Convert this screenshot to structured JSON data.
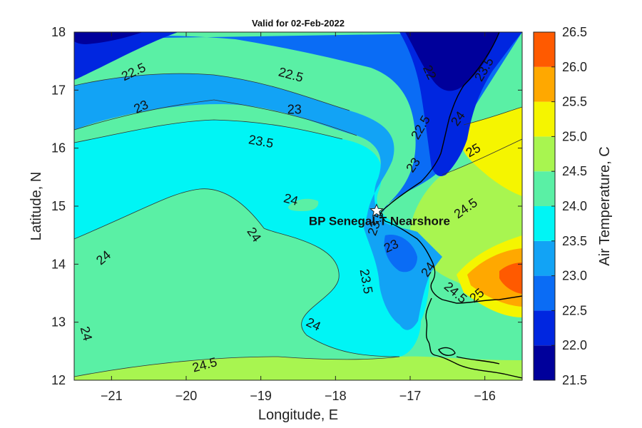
{
  "title": "Valid for 02-Feb-2022",
  "x_axis": {
    "label": "Longitude, E",
    "range": [
      -21.5,
      -15.5
    ],
    "ticks": [
      -21,
      -20,
      -19,
      -18,
      -17,
      -16
    ],
    "tick_labels": [
      "−21",
      "−20",
      "−19",
      "−18",
      "−17",
      "−16"
    ]
  },
  "y_axis": {
    "label": "Latitude, N",
    "range": [
      12,
      18
    ],
    "ticks": [
      12,
      13,
      14,
      15,
      16,
      17,
      18
    ],
    "tick_labels": [
      "12",
      "13",
      "14",
      "15",
      "16",
      "17",
      "18"
    ]
  },
  "colorbar": {
    "label": "Air Temperature, C",
    "levels": [
      21.5,
      22.0,
      22.5,
      23.0,
      23.5,
      24.0,
      24.5,
      25.0,
      25.5,
      26.0,
      26.5
    ],
    "tick_labels": [
      "21.5",
      "22.0",
      "22.5",
      "23.0",
      "23.5",
      "24.0",
      "24.5",
      "25.0",
      "25.5",
      "26.0",
      "26.5"
    ],
    "colors": [
      "#00009b",
      "#0026e0",
      "#0a6cf5",
      "#12a3f5",
      "#00f5f5",
      "#5af0a5",
      "#a8f550",
      "#f5f500",
      "#ffa800",
      "#ff5a00"
    ]
  },
  "chart_data": {
    "type": "heatmap",
    "variable": "Air Temperature",
    "units": "C",
    "contour_labels": [
      {
        "text": "22.5",
        "lon": -20.7,
        "lat": 17.3,
        "angle": -25
      },
      {
        "text": "22.5",
        "lon": -18.6,
        "lat": 17.25,
        "angle": 15
      },
      {
        "text": "22",
        "lon": -16.75,
        "lat": 17.3,
        "angle": 65
      },
      {
        "text": "23.5",
        "lon": -16.0,
        "lat": 17.35,
        "angle": -60
      },
      {
        "text": "23",
        "lon": -20.6,
        "lat": 16.7,
        "angle": -25
      },
      {
        "text": "23",
        "lon": -18.55,
        "lat": 16.65,
        "angle": 0
      },
      {
        "text": "22.5",
        "lon": -16.85,
        "lat": 16.35,
        "angle": -60
      },
      {
        "text": "24",
        "lon": -16.35,
        "lat": 16.5,
        "angle": -55
      },
      {
        "text": "23.5",
        "lon": -19.0,
        "lat": 16.1,
        "angle": 10
      },
      {
        "text": "25",
        "lon": -16.15,
        "lat": 15.95,
        "angle": -30
      },
      {
        "text": "23",
        "lon": -16.95,
        "lat": 15.7,
        "angle": -55
      },
      {
        "text": "24",
        "lon": -18.6,
        "lat": 15.1,
        "angle": 15
      },
      {
        "text": "24.5",
        "lon": -16.25,
        "lat": 14.95,
        "angle": -35
      },
      {
        "text": "23.5",
        "lon": -17.45,
        "lat": 14.7,
        "angle": -70
      },
      {
        "text": "24",
        "lon": -19.1,
        "lat": 14.5,
        "angle": 55
      },
      {
        "text": "23",
        "lon": -17.25,
        "lat": 14.3,
        "angle": -25
      },
      {
        "text": "24",
        "lon": -21.1,
        "lat": 14.1,
        "angle": -40
      },
      {
        "text": "24",
        "lon": -16.75,
        "lat": 13.9,
        "angle": -55
      },
      {
        "text": "23.5",
        "lon": -17.6,
        "lat": 13.7,
        "angle": 80
      },
      {
        "text": "24.5",
        "lon": -16.4,
        "lat": 13.5,
        "angle": 40
      },
      {
        "text": "25",
        "lon": -16.1,
        "lat": 13.45,
        "angle": -40
      },
      {
        "text": "24",
        "lon": -18.3,
        "lat": 12.95,
        "angle": 25
      },
      {
        "text": "24",
        "lon": -21.35,
        "lat": 12.8,
        "angle": 75
      },
      {
        "text": "24.5",
        "lon": -19.75,
        "lat": 12.25,
        "angle": -15
      }
    ],
    "stations": [
      {
        "name": "BP Senegal-T Nearshore",
        "lon": -17.45,
        "lat": 14.92
      }
    ]
  }
}
